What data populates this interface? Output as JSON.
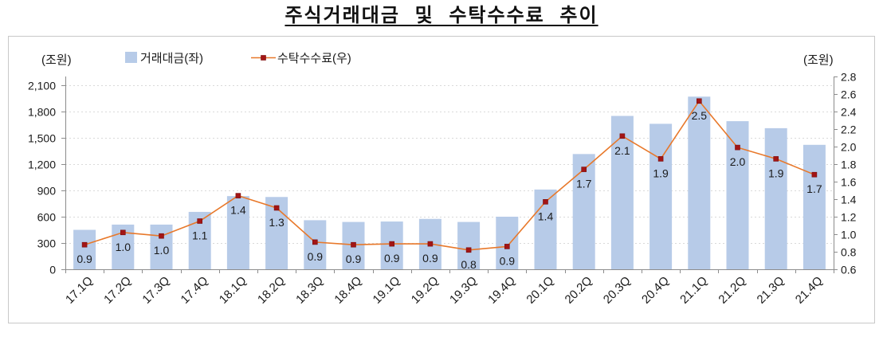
{
  "chart_data": {
    "type": "bar",
    "title": "주식거래대금 및 수탁수수료 추이",
    "categories": [
      "17.1Q",
      "17.2Q",
      "17.3Q",
      "17.4Q",
      "18.1Q",
      "18.2Q",
      "18.3Q",
      "18.4Q",
      "19.1Q",
      "19.2Q",
      "19.3Q",
      "19.4Q",
      "20.1Q",
      "20.2Q",
      "20.3Q",
      "20.4Q",
      "21.1Q",
      "21.2Q",
      "21.3Q",
      "21.4Q"
    ],
    "series": [
      {
        "name": "거래대금(좌)",
        "type": "bar",
        "axis": "left",
        "values": [
          450,
          510,
          510,
          655,
          835,
          825,
          560,
          540,
          545,
          575,
          540,
          600,
          910,
          1315,
          1750,
          1660,
          1970,
          1690,
          1610,
          1420
        ]
      },
      {
        "name": "수탁수수료(우)",
        "type": "line",
        "axis": "right",
        "values": [
          0.88,
          1.02,
          0.98,
          1.15,
          1.44,
          1.3,
          0.91,
          0.88,
          0.89,
          0.89,
          0.82,
          0.86,
          1.37,
          1.74,
          2.12,
          1.86,
          2.52,
          1.99,
          1.86,
          1.68
        ],
        "data_labels": [
          "0.9",
          "1.0",
          "1.0",
          "1.1",
          "1.4",
          "1.3",
          "0.9",
          "0.9",
          "0.9",
          "0.9",
          "0.8",
          "0.9",
          "1.4",
          "1.7",
          "2.1",
          "1.9",
          "2.5",
          "2.0",
          "1.9",
          "1.7"
        ]
      }
    ],
    "y_left": {
      "label": "(조원)",
      "ylim": [
        0,
        2200
      ],
      "ticks": [
        0,
        300,
        600,
        900,
        1200,
        1500,
        1800,
        2100
      ],
      "tick_labels": [
        "0",
        "300",
        "600",
        "900",
        "1,200",
        "1,500",
        "1,800",
        "2,100"
      ]
    },
    "y_right": {
      "label": "(조원)",
      "ylim": [
        0.6,
        2.8
      ],
      "ticks": [
        0.6,
        0.8,
        1.0,
        1.2,
        1.4,
        1.6,
        1.8,
        2.0,
        2.2,
        2.4,
        2.6,
        2.8
      ],
      "tick_labels": [
        "0.6",
        "0.8",
        "1.0",
        "1.2",
        "1.4",
        "1.6",
        "1.8",
        "2.0",
        "2.2",
        "2.4",
        "2.6",
        "2.8"
      ]
    },
    "legend": "top-left",
    "grid": true,
    "colors": {
      "bars": "#b7cbe8",
      "line": "#e8782a",
      "markers": "#a31515",
      "axis": "#8c8c8c",
      "grid": "#d9d9d9",
      "frame": "#c8c8c8"
    }
  }
}
